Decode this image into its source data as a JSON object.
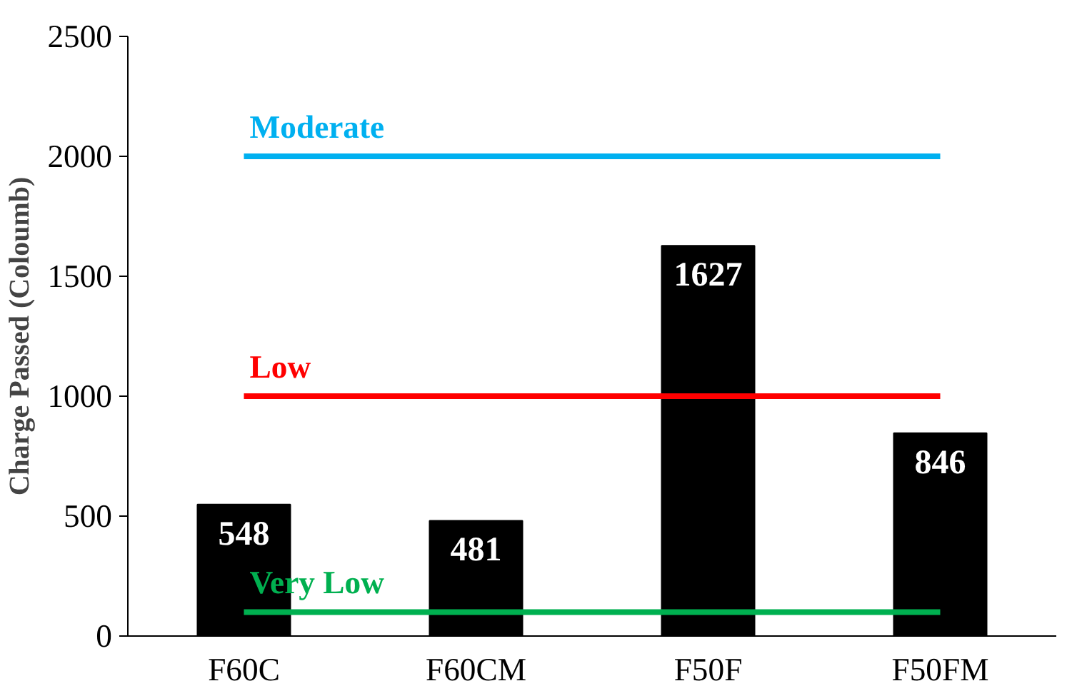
{
  "chart_data": {
    "type": "bar",
    "ylabel": "Charge Passed (Coloumb)",
    "categories": [
      "F60C",
      "F60CM",
      "F50F",
      "F50FM"
    ],
    "values": [
      548,
      481,
      1627,
      846
    ],
    "color": "#000000",
    "data_labels": true,
    "ylim": [
      0,
      2500
    ],
    "yticks": [
      0,
      500,
      1000,
      1500,
      2000,
      2500
    ],
    "grid": false,
    "ref_lines": [
      {
        "axis": "y",
        "value": 2000,
        "label": "Moderate",
        "color": "#00b0f0"
      },
      {
        "axis": "y",
        "value": 1000,
        "label": "Low",
        "color": "#ff0000"
      },
      {
        "axis": "y",
        "value": 100,
        "label": "Very Low",
        "color": "#00b050"
      }
    ]
  }
}
